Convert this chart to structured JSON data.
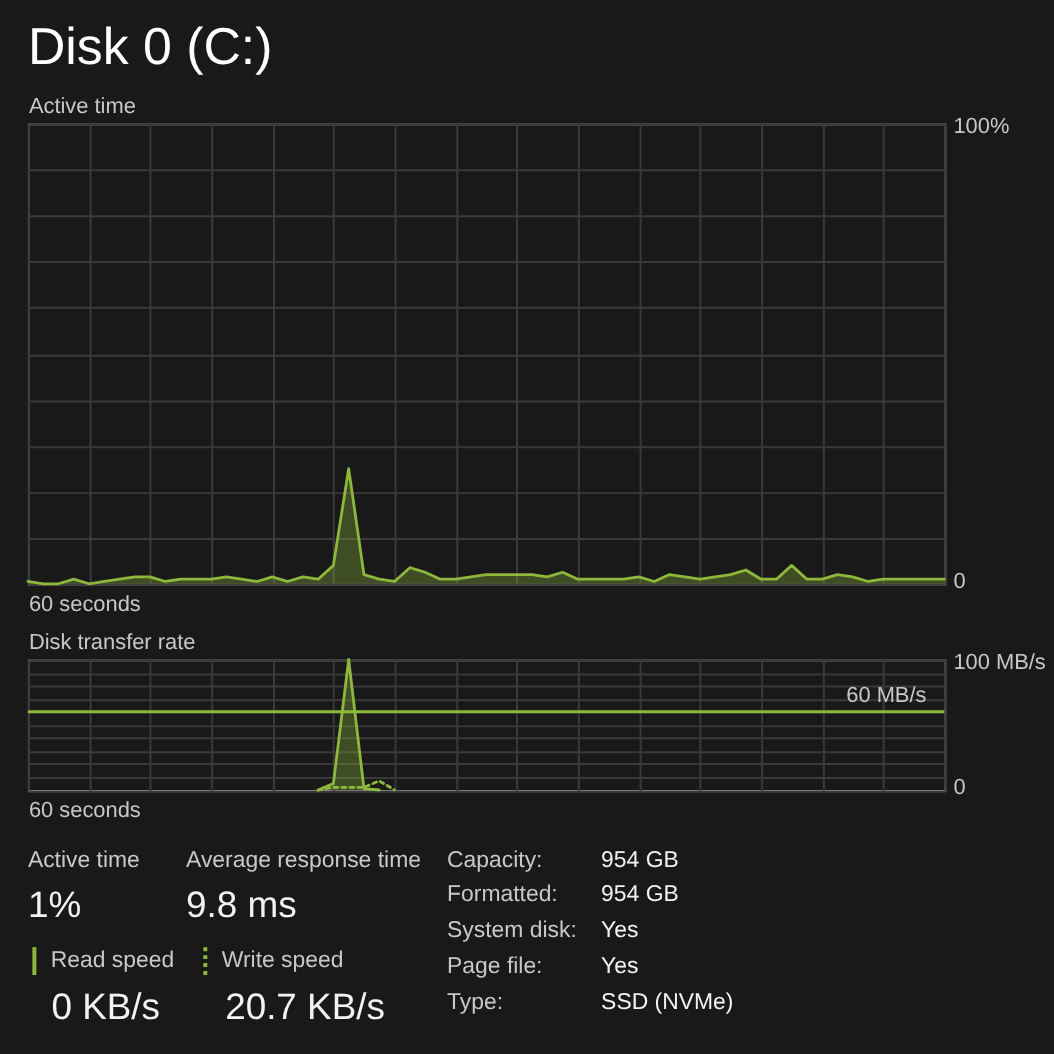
{
  "chart_data": [
    {
      "type": "area",
      "title": "Disk 0 (C:)",
      "ylabel": "Active time",
      "xlabel": "60 seconds",
      "categories": [
        null,
        null,
        null,
        null,
        null,
        null,
        null,
        null,
        null,
        null,
        null,
        null,
        null,
        null,
        null,
        null,
        null,
        null,
        null,
        null,
        null,
        null,
        null,
        null,
        null,
        null,
        null,
        null,
        null,
        null,
        null,
        null,
        null,
        null,
        null,
        null,
        null,
        null,
        null,
        null,
        null,
        null,
        null,
        null,
        null,
        null,
        null,
        null,
        null,
        null,
        null,
        null,
        null,
        null,
        null,
        null,
        null,
        null,
        null,
        null,
        null
      ],
      "series": [
        {
          "color": "#8db83c",
          "values": [
            0.5,
            0,
            0,
            1,
            0,
            0.5,
            1,
            1.5,
            1.5,
            0.5,
            1,
            1,
            1,
            1.5,
            1,
            0.5,
            1.5,
            0.5,
            1.5,
            1,
            4,
            25,
            2,
            1,
            0.5,
            3.5,
            2.5,
            1,
            1,
            1.5,
            2,
            2,
            2,
            2,
            1.5,
            2.5,
            1,
            1,
            1,
            1,
            1.5,
            0.5,
            2,
            1.5,
            1,
            1.5,
            2,
            3,
            1,
            1,
            4,
            1,
            1,
            2,
            1.5,
            0.5,
            1,
            1,
            1,
            1,
            1
          ]
        }
      ],
      "ylim": [
        0,
        100
      ],
      "yticks": [
        0,
        {
          "value": 10,
          "label": null
        },
        {
          "value": 20,
          "label": null
        },
        {
          "value": 30,
          "label": null
        },
        {
          "value": 40,
          "label": null
        },
        {
          "value": 50,
          "label": null
        },
        {
          "value": 60,
          "label": null
        },
        {
          "value": 70,
          "label": null
        },
        {
          "value": 80,
          "label": null
        },
        {
          "value": 90,
          "label": null
        },
        {
          "value": 100,
          "label": "100%"
        }
      ],
      "grid": true
    },
    {
      "type": "area",
      "ylabel": "Disk transfer rate",
      "xlabel": "60 seconds",
      "categories": [
        null,
        null,
        null,
        null,
        null,
        null,
        null,
        null,
        null,
        null,
        null,
        null,
        null,
        null,
        null,
        null,
        null,
        null,
        null,
        null,
        null,
        null,
        null,
        null,
        null,
        null,
        null,
        null,
        null,
        null,
        null,
        null,
        null,
        null,
        null,
        null,
        null,
        null,
        null,
        null,
        null,
        null,
        null,
        null,
        null,
        null,
        null,
        null,
        null,
        null,
        null,
        null,
        null,
        null,
        null,
        null,
        null,
        null,
        null,
        null,
        null
      ],
      "series": [
        {
          "name": "Read speed",
          "type": "area",
          "color": "#8db83c",
          "values": [
            null,
            null,
            null,
            null,
            null,
            null,
            null,
            null,
            null,
            null,
            null,
            null,
            null,
            null,
            null,
            null,
            null,
            null,
            null,
            0,
            5,
            100,
            1,
            0,
            null,
            null,
            null,
            null,
            null,
            null,
            null,
            null,
            null,
            null,
            null,
            null,
            null,
            null,
            null,
            null,
            null,
            null,
            null,
            null,
            null,
            null,
            null,
            null,
            null,
            null,
            null,
            null,
            null,
            null,
            null,
            null,
            null,
            null,
            null,
            null,
            null
          ]
        },
        {
          "name": "Write speed",
          "type": "line",
          "line_style": "dotted",
          "color": "#8db83c",
          "values": [
            null,
            null,
            null,
            null,
            null,
            null,
            null,
            null,
            null,
            null,
            null,
            null,
            null,
            null,
            null,
            null,
            null,
            null,
            null,
            0,
            2,
            2,
            2,
            7,
            0,
            null,
            null,
            null,
            null,
            null,
            null,
            null,
            null,
            null,
            null,
            null,
            null,
            null,
            null,
            null,
            null,
            null,
            null,
            null,
            null,
            null,
            null,
            null,
            null,
            null,
            null,
            null,
            null,
            null,
            null,
            null,
            null,
            null,
            null,
            null,
            null
          ]
        }
      ],
      "ylim": [
        0,
        100
      ],
      "yticks": [
        0,
        {
          "value": 10,
          "label": null
        },
        {
          "value": 20,
          "label": null
        },
        {
          "value": 30,
          "label": null
        },
        {
          "value": 40,
          "label": null
        },
        {
          "value": 50,
          "label": null
        },
        {
          "value": 60,
          "label": null
        },
        {
          "value": 70,
          "label": null
        },
        {
          "value": 80,
          "label": null
        },
        {
          "value": 90,
          "label": null
        },
        {
          "value": 100,
          "label": "100 MB/s"
        }
      ],
      "ref_lines": [
        {
          "axis": "y",
          "value": 60,
          "label": "60 MB/s",
          "color": "#8db83c"
        }
      ],
      "grid": true,
      "legend": "bottom left"
    },
    {
      "type": "other",
      "annotations": [
        "Active time",
        "1%",
        "Average response time",
        "9.8 ms",
        "0 KB/s",
        "20.7 KB/s",
        "Capacity:",
        "954 GB",
        "Formatted:",
        "954 GB",
        "System disk:",
        "Yes",
        "Page file:",
        "Yes",
        "Type:",
        "SSD (NVMe)"
      ]
    }
  ]
}
